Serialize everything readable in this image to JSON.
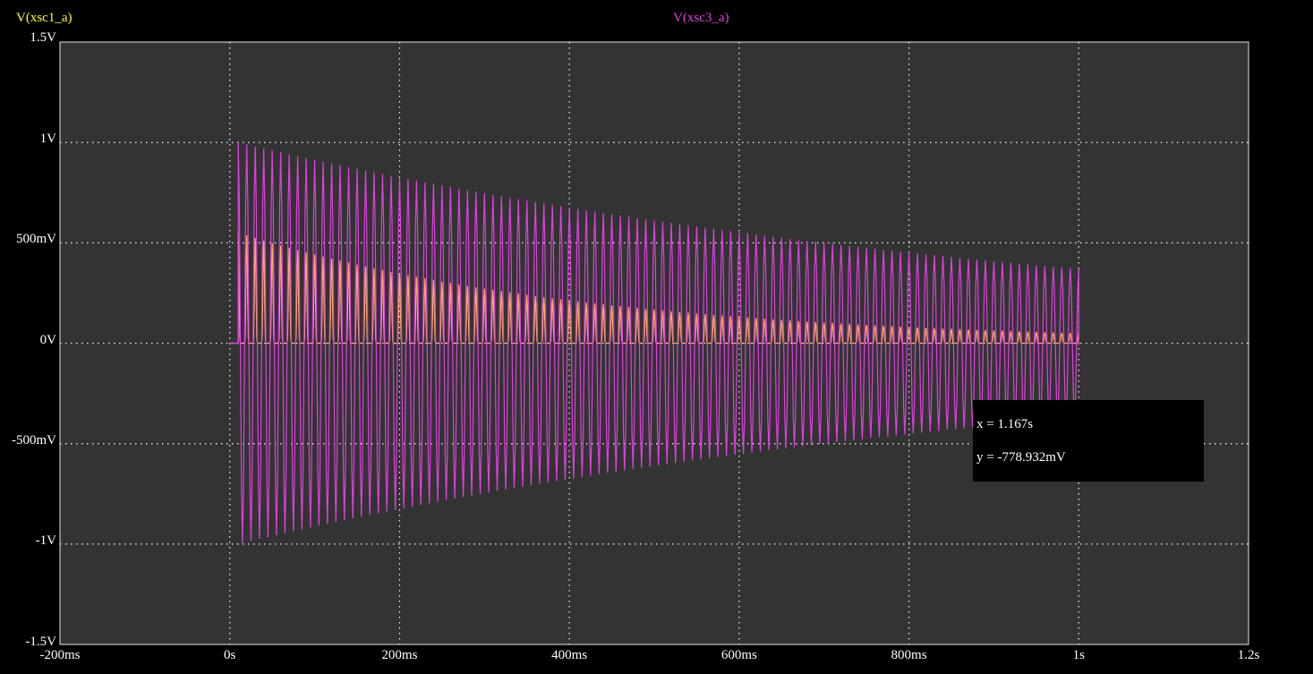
{
  "chart_data": {
    "type": "line",
    "series": [
      {
        "name": "V(xsc1_a)",
        "color": "#ffff33",
        "line_color": "#ffb060",
        "waveform": "half-wave rectified sine, decaying",
        "x_start": 0.01,
        "x_end": 1.0,
        "period": 0.01,
        "peak_start": 0.55,
        "peak_end": 0.05,
        "baseline": 0
      },
      {
        "name": "V(xsc3_a)",
        "color": "#e040e0",
        "waveform": "full sine, decaying amplitude",
        "x_start": 0.01,
        "x_end": 1.0,
        "period": 0.01,
        "peak_start": 1.0,
        "peak_end": 0.37
      }
    ],
    "xlabel": "",
    "ylabel": "",
    "xlim": [
      -0.2,
      1.2
    ],
    "ylim": [
      -1.5,
      1.5
    ],
    "x_ticks": [
      {
        "value": -0.2,
        "label": "-200ms"
      },
      {
        "value": 0,
        "label": "0s"
      },
      {
        "value": 0.2,
        "label": "200ms"
      },
      {
        "value": 0.4,
        "label": "400ms"
      },
      {
        "value": 0.6,
        "label": "600ms"
      },
      {
        "value": 0.8,
        "label": "800ms"
      },
      {
        "value": 1.0,
        "label": "1s"
      },
      {
        "value": 1.2,
        "label": "1.2s"
      }
    ],
    "y_ticks": [
      {
        "value": 1.5,
        "label": "1.5V"
      },
      {
        "value": 1.0,
        "label": "1V"
      },
      {
        "value": 0.5,
        "label": "500mV"
      },
      {
        "value": 0,
        "label": "0V"
      },
      {
        "value": -0.5,
        "label": "-500mV"
      },
      {
        "value": -1.0,
        "label": "-1V"
      },
      {
        "value": -1.5,
        "label": "-1.5V"
      }
    ],
    "grid": true,
    "legend": "top",
    "cursor_readout": {
      "x_text": "x = 1.167s",
      "y_text": "y = -778.932mV"
    }
  },
  "colors": {
    "background": "#000000",
    "plot_area": "#333333",
    "grid": "#e6e6e6",
    "text": "#ffffff"
  }
}
